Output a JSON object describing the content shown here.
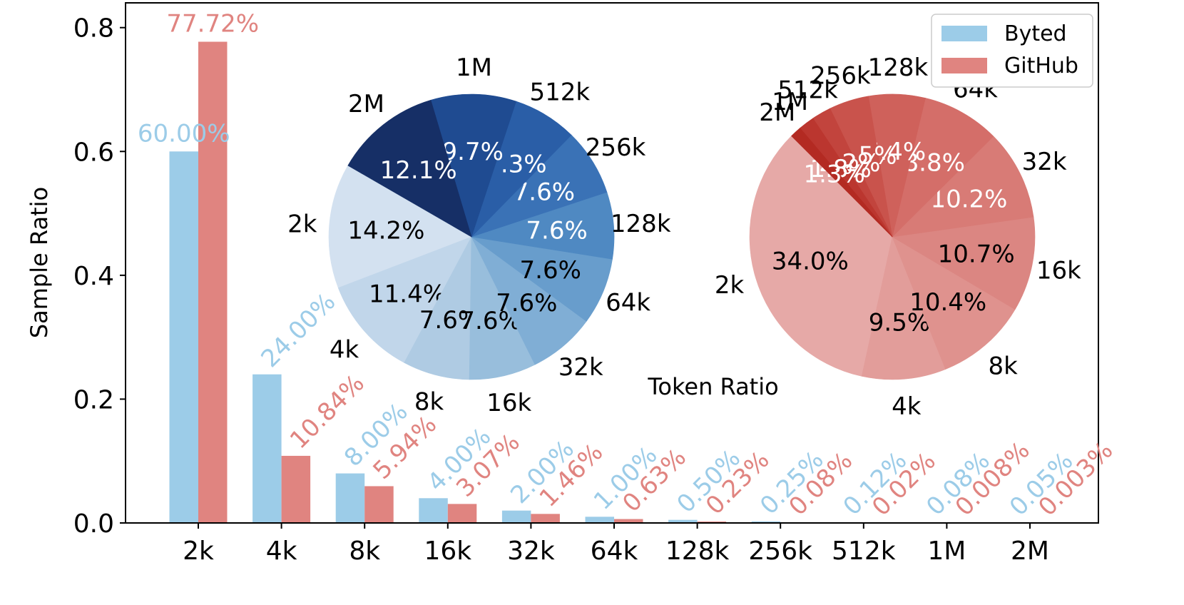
{
  "chart_data": [
    {
      "type": "bar",
      "categories": [
        "2k",
        "4k",
        "8k",
        "16k",
        "32k",
        "64k",
        "128k",
        "256k",
        "512k",
        "1M",
        "2M"
      ],
      "ylabel": "Sample Ratio",
      "ylim": [
        0,
        0.84
      ],
      "yticks": [
        "0.0",
        "0.2",
        "0.4",
        "0.6",
        "0.8"
      ],
      "series": [
        {
          "name": "Byted",
          "color": "#9ccce8",
          "values": [
            0.6,
            0.24,
            0.08,
            0.04,
            0.02,
            0.01,
            0.005,
            0.0025,
            0.0012,
            0.0008,
            0.0005
          ],
          "labels": [
            "60.00%",
            "24.00%",
            "8.00%",
            "4.00%",
            "2.00%",
            "1.00%",
            "0.50%",
            "0.25%",
            "0.12%",
            "0.08%",
            "0.05%"
          ]
        },
        {
          "name": "GitHub",
          "color": "#e08480",
          "values": [
            0.7772,
            0.1084,
            0.0594,
            0.0307,
            0.0146,
            0.0063,
            0.0023,
            0.0008,
            0.0002,
            8e-05,
            3e-05
          ],
          "labels": [
            "77.72%",
            "10.84%",
            "5.94%",
            "3.07%",
            "1.46%",
            "0.63%",
            "0.23%",
            "0.08%",
            "0.02%",
            "0.008%",
            "0.003%"
          ]
        }
      ],
      "legend": {
        "position": "top-right",
        "entries": [
          {
            "label": "Byted",
            "color": "#9ccce8"
          },
          {
            "label": "GitHub",
            "color": "#e08480"
          }
        ]
      }
    },
    {
      "type": "pie",
      "title": "Token Ratio",
      "series_name": "Byted",
      "categories": [
        "2k",
        "4k",
        "8k",
        "16k",
        "32k",
        "64k",
        "128k",
        "256k",
        "512k",
        "1M",
        "2M"
      ],
      "values": [
        14.2,
        11.4,
        7.6,
        7.6,
        7.6,
        7.6,
        7.6,
        7.6,
        7.3,
        9.7,
        12.1
      ],
      "labels": [
        "14.2%",
        "11.4%",
        "7.6%",
        "7.6%",
        "7.6%",
        "7.6%",
        "7.6%",
        "7.6%",
        "7.3%",
        "9.7%",
        "12.1%"
      ],
      "colors": [
        "#d3e1f0",
        "#c1d6ea",
        "#afcbe3",
        "#98bedc",
        "#80aed5",
        "#689dcc",
        "#4f89c2",
        "#3a72b6",
        "#2a5ea7",
        "#1f4b91",
        "#162f66"
      ],
      "label_colors": [
        "#000",
        "#000",
        "#000",
        "#000",
        "#000",
        "#000",
        "#fff",
        "#fff",
        "#fff",
        "#fff",
        "#fff"
      ]
    },
    {
      "type": "pie",
      "series_name": "GitHub",
      "categories": [
        "2k",
        "4k",
        "8k",
        "16k",
        "32k",
        "64k",
        "128k",
        "256k",
        "512k",
        "1M",
        "2M"
      ],
      "values": [
        34.0,
        9.5,
        10.4,
        10.7,
        10.2,
        8.8,
        6.4,
        4.5,
        2.2,
        1.8,
        1.3
      ],
      "labels": [
        "34.0%",
        "9.5%",
        "10.4%",
        "10.7%",
        "10.2%",
        "8.8%",
        "6.4%",
        "4.5%",
        "2.2%",
        "1.8%",
        "1.3%"
      ],
      "colors": [
        "#e6a9a7",
        "#e29d9a",
        "#df928e",
        "#db8682",
        "#d87b76",
        "#d46e69",
        "#cf615b",
        "#c9534c",
        "#c2443d",
        "#bb362f",
        "#b32a22"
      ],
      "label_colors": [
        "#000",
        "#000",
        "#000",
        "#000",
        "#fff",
        "#fff",
        "#fff",
        "#fff",
        "#fff",
        "#fff",
        "#fff"
      ]
    }
  ]
}
